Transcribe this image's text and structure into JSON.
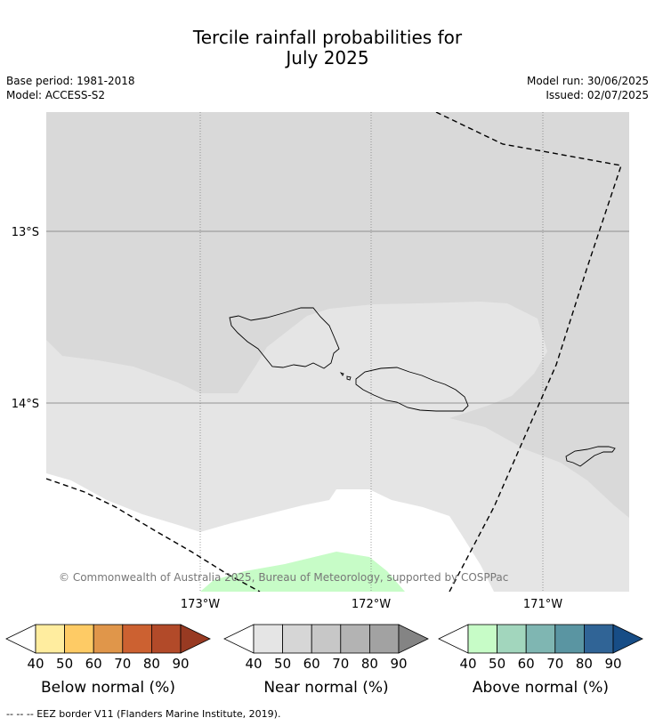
{
  "title_line1": "Tercile rainfall probabilities for",
  "title_line2": "July 2025",
  "meta": {
    "base_period": "Base period: 1981-2018",
    "model": "Model: ACCESS-S2",
    "model_run": "Model run: 30/06/2025",
    "issued": "Issued: 02/07/2025"
  },
  "map": {
    "lat_labels": [
      "13°S",
      "14°S"
    ],
    "lon_labels": [
      "173°W",
      "172°W",
      "171°W"
    ],
    "copyright": "© Commonwealth of Australia 2025, Bureau of Meteorology, supported by COSPPac",
    "colors": {
      "near_high": "#d9d9d9",
      "near_low": "#e5e5e5",
      "above_40": "#c7fcc7",
      "no_signal": "#ffffff"
    }
  },
  "colorbars": [
    {
      "label": "Below normal (%)",
      "ticks": [
        "40",
        "50",
        "60",
        "70",
        "80",
        "90"
      ],
      "colors": [
        "#ffffff",
        "#ffed9f",
        "#fecb65",
        "#e0964a",
        "#cc6131",
        "#b24a29",
        "#983a22"
      ]
    },
    {
      "label": "Near normal (%)",
      "ticks": [
        "40",
        "50",
        "60",
        "70",
        "80",
        "90"
      ],
      "colors": [
        "#ffffff",
        "#e5e5e5",
        "#d6d6d6",
        "#c7c7c7",
        "#b3b3b3",
        "#a2a2a2",
        "#848484"
      ]
    },
    {
      "label": "Above normal (%)",
      "ticks": [
        "40",
        "50",
        "60",
        "70",
        "80",
        "90"
      ],
      "colors": [
        "#ffffff",
        "#c7fcc7",
        "#a2d6bd",
        "#7fb6b2",
        "#5a95a2",
        "#306496",
        "#174d86"
      ]
    }
  ],
  "footer": "--  --  -- EEZ border V11 (Flanders Marine Institute, 2019)."
}
